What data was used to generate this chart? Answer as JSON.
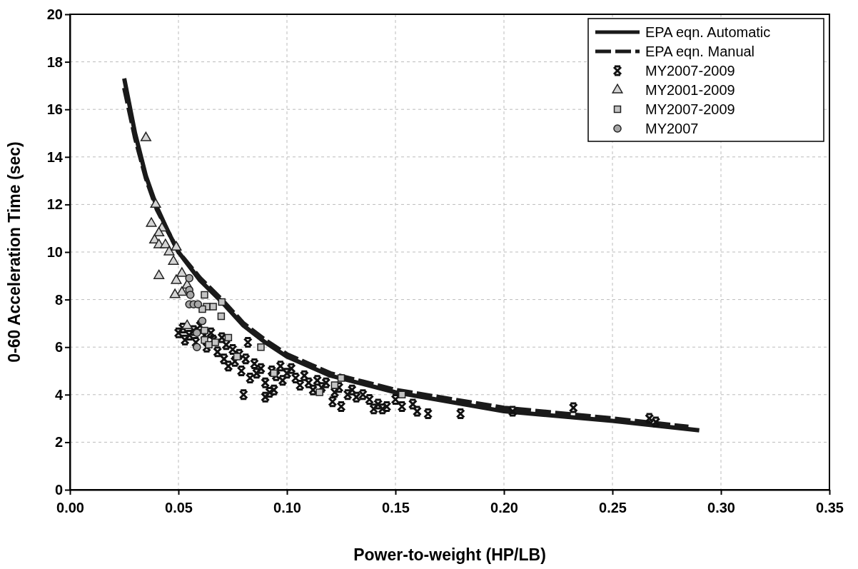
{
  "chart_data": {
    "type": "scatter",
    "xlabel": "Power-to-weight (HP/LB)",
    "ylabel": "0-60 Acceleration Time (sec)",
    "xlim": [
      0,
      0.35
    ],
    "xticks": [
      {
        "value": 0,
        "label": "0.00"
      },
      {
        "value": 0.05,
        "label": "0.05"
      },
      {
        "value": 0.1,
        "label": "0.10"
      },
      {
        "value": 0.15,
        "label": "0.15"
      },
      {
        "value": 0.2,
        "label": "0.20"
      },
      {
        "value": 0.25,
        "label": "0.25"
      },
      {
        "value": 0.3,
        "label": "0.30"
      },
      {
        "value": 0.35,
        "label": "0.35"
      }
    ],
    "ylim": [
      0,
      20
    ],
    "yticks": [
      0,
      2,
      4,
      6,
      8,
      10,
      12,
      14,
      16,
      18,
      20
    ],
    "grid": true,
    "legend": "top right",
    "series": [
      {
        "name": "EPA eqn. Automatic",
        "type": "line",
        "line_style": "solid",
        "color": "#1a1a1a",
        "x": [
          0.025,
          0.03,
          0.035,
          0.04,
          0.045,
          0.05,
          0.06,
          0.07,
          0.08,
          0.09,
          0.1,
          0.12,
          0.15,
          0.2,
          0.25,
          0.29
        ],
        "values": [
          17.3,
          15.0,
          13.2,
          11.9,
          10.9,
          10.0,
          8.8,
          7.9,
          6.9,
          6.2,
          5.6,
          4.8,
          4.1,
          3.3,
          2.9,
          2.5
        ]
      },
      {
        "name": "EPA eqn. Manual",
        "type": "line",
        "line_style": "dashed",
        "color": "#1a1a1a",
        "x": [
          0.025,
          0.03,
          0.035,
          0.04,
          0.045,
          0.05,
          0.06,
          0.07,
          0.08,
          0.09,
          0.1,
          0.12,
          0.15,
          0.2,
          0.25,
          0.285
        ],
        "values": [
          16.9,
          14.8,
          13.1,
          11.8,
          10.9,
          10.0,
          8.9,
          8.0,
          7.0,
          6.3,
          5.7,
          4.9,
          4.2,
          3.45,
          3.0,
          2.65
        ]
      },
      {
        "name": "MY2007-2009",
        "type": "scatter",
        "marker": "cross",
        "color": "#111111",
        "x": [
          0.05,
          0.052,
          0.053,
          0.055,
          0.057,
          0.058,
          0.06,
          0.062,
          0.063,
          0.065,
          0.066,
          0.068,
          0.07,
          0.071,
          0.072,
          0.073,
          0.075,
          0.076,
          0.078,
          0.079,
          0.08,
          0.081,
          0.082,
          0.083,
          0.085,
          0.086,
          0.088,
          0.09,
          0.09,
          0.092,
          0.093,
          0.094,
          0.095,
          0.097,
          0.098,
          0.1,
          0.102,
          0.104,
          0.106,
          0.108,
          0.11,
          0.112,
          0.114,
          0.116,
          0.118,
          0.121,
          0.122,
          0.124,
          0.125,
          0.128,
          0.13,
          0.132,
          0.135,
          0.138,
          0.14,
          0.142,
          0.144,
          0.146,
          0.15,
          0.153,
          0.158,
          0.16,
          0.165,
          0.18,
          0.204,
          0.232,
          0.267,
          0.27
        ],
        "values": [
          6.6,
          6.8,
          6.3,
          6.5,
          6.7,
          6.2,
          6.9,
          6.5,
          6.0,
          6.6,
          6.3,
          5.8,
          6.4,
          5.5,
          6.1,
          5.2,
          5.9,
          5.4,
          5.7,
          5.0,
          4.0,
          5.5,
          6.2,
          4.7,
          5.3,
          4.9,
          5.1,
          4.5,
          3.9,
          4.1,
          5.0,
          4.2,
          4.8,
          5.2,
          4.6,
          4.9,
          5.1,
          4.7,
          4.4,
          4.8,
          4.5,
          4.2,
          4.6,
          4.3,
          4.5,
          3.7,
          4.1,
          4.3,
          3.5,
          4.0,
          4.2,
          3.9,
          4.0,
          3.8,
          3.4,
          3.6,
          3.4,
          3.5,
          3.8,
          3.5,
          3.6,
          3.3,
          3.2,
          3.2,
          3.3,
          3.45,
          3.0,
          2.85
        ]
      },
      {
        "name": "MY2001-2009",
        "type": "scatter",
        "marker": "triangle",
        "color": "#d4d4d4",
        "x": [
          0.035,
          0.0395,
          0.0375,
          0.0424,
          0.041,
          0.039,
          0.041,
          0.044,
          0.049,
          0.0457,
          0.0477,
          0.041,
          0.0516,
          0.049,
          0.054,
          0.0516,
          0.0484,
          0.054
        ],
        "values": [
          14.8,
          12.0,
          11.2,
          11.0,
          10.8,
          10.5,
          10.3,
          10.3,
          10.2,
          10.0,
          9.6,
          9.0,
          9.1,
          8.8,
          8.6,
          8.3,
          8.2,
          6.9
        ]
      },
      {
        "name": "MY2007-2009",
        "type": "scatter",
        "marker": "square",
        "color": "#c4c4c4",
        "x": [
          0.062,
          0.07,
          0.063,
          0.066,
          0.061,
          0.0697,
          0.062,
          0.062,
          0.073,
          0.067,
          0.064,
          0.077,
          0.088,
          0.094,
          0.115,
          0.122,
          0.125,
          0.153
        ],
        "values": [
          8.2,
          7.9,
          7.7,
          7.7,
          7.6,
          7.3,
          6.7,
          6.3,
          6.4,
          6.2,
          6.1,
          5.6,
          6.0,
          4.9,
          4.1,
          4.4,
          4.7,
          4.0
        ]
      },
      {
        "name": "MY2007",
        "type": "scatter",
        "marker": "circle",
        "color": "#a6a6a6",
        "x": [
          0.055,
          0.055,
          0.0555,
          0.055,
          0.057,
          0.059,
          0.061,
          0.0585,
          0.0585
        ],
        "values": [
          8.9,
          8.4,
          8.2,
          7.8,
          7.8,
          7.8,
          7.1,
          6.6,
          6.0
        ]
      }
    ]
  }
}
